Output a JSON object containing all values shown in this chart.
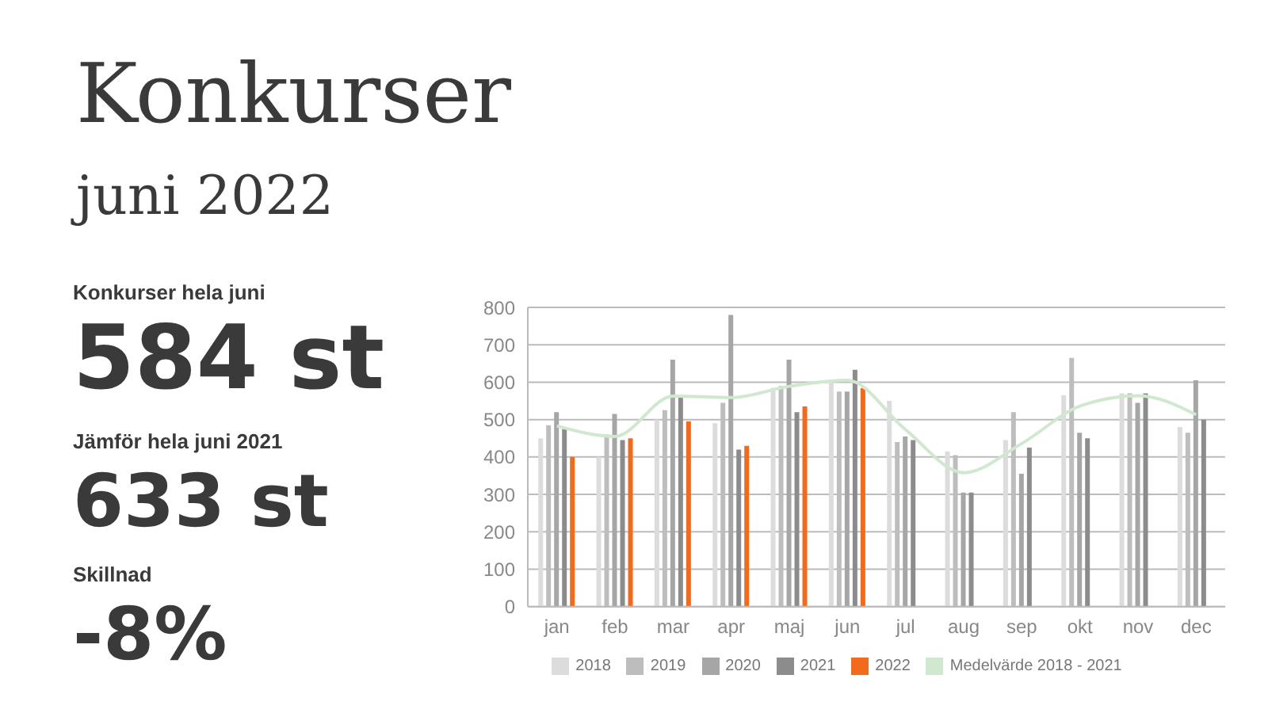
{
  "chart_data": {
    "type": "bar",
    "title": "Konkurser",
    "subtitle": "juni 2022",
    "annotations": [
      "Konkurser hela juni",
      "584 st",
      "Jämför hela juni 2021",
      "633 st",
      "Skillnad",
      "-8%"
    ],
    "categories": [
      "jan",
      "feb",
      "mar",
      "apr",
      "maj",
      "jun",
      "jul",
      "aug",
      "sep",
      "okt",
      "nov",
      "dec"
    ],
    "series": [
      {
        "name": "Medelvärde 2018 - 2021",
        "type": "line",
        "color": "#cfe8cf",
        "values": [
          483,
          455,
          563,
          559,
          589,
          605,
          473,
          358,
          436,
          536,
          564,
          513
        ]
      },
      {
        "name": "2018",
        "color": "#dcdcdc",
        "values": [
          450,
          400,
          500,
          490,
          585,
          600,
          550,
          415,
          445,
          565,
          570,
          480
        ]
      },
      {
        "name": "2019",
        "color": "#bdbdbd",
        "values": [
          485,
          460,
          525,
          545,
          590,
          575,
          440,
          405,
          520,
          665,
          570,
          465
        ]
      },
      {
        "name": "2020",
        "color": "#a6a6a6",
        "values": [
          520,
          515,
          660,
          780,
          660,
          575,
          455,
          305,
          355,
          465,
          545,
          605
        ]
      },
      {
        "name": "2021",
        "color": "#8c8c8c",
        "values": [
          475,
          445,
          565,
          420,
          520,
          633,
          445,
          305,
          425,
          450,
          570,
          500
        ]
      },
      {
        "name": "2022",
        "color": "#f26b1d",
        "values": [
          400,
          450,
          495,
          430,
          535,
          584,
          null,
          null,
          null,
          null,
          null,
          null
        ]
      }
    ],
    "ylim": [
      0,
      800
    ],
    "yticks": [
      0,
      100,
      200,
      300,
      400,
      500,
      600,
      700,
      800
    ],
    "grid": "y",
    "legend": "bottom"
  }
}
